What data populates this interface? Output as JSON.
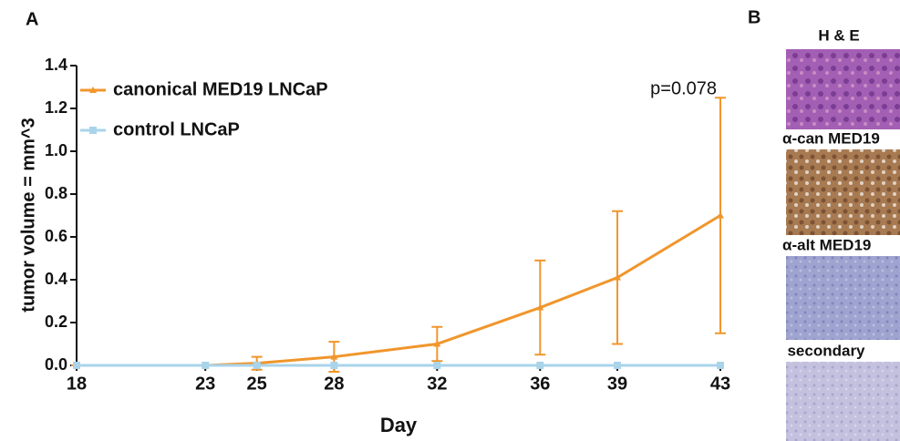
{
  "chart_data": {
    "type": "line",
    "xlabel": "Day",
    "ylabel": "tumor volume = mm^3",
    "x": [
      18,
      23,
      25,
      28,
      32,
      36,
      39,
      43
    ],
    "xlim": [
      18,
      43
    ],
    "xticks": [
      18,
      23,
      25,
      28,
      32,
      36,
      39,
      43
    ],
    "ylim": [
      0,
      1.4
    ],
    "yticks": [
      {
        "value": 0,
        "label": "0.0"
      },
      0.2,
      0.4,
      0.6,
      0.8,
      {
        "value": 1,
        "label": "1.0"
      },
      1.2,
      1.4
    ],
    "legend": "upper left",
    "annotation": "p=0.078",
    "series": [
      {
        "name": "canonical MED19 LNCaP",
        "color": "#f0962c",
        "values": [
          0,
          0,
          0.01,
          0.04,
          0.1,
          0.27,
          0.41,
          0.7
        ],
        "errors": [
          0,
          0,
          0.03,
          0.07,
          0.08,
          0.22,
          0.31,
          0.55
        ]
      },
      {
        "name": "control LNCaP",
        "color": "#a9d4ea",
        "values": [
          0,
          0,
          0,
          0,
          0,
          0,
          0,
          0
        ]
      }
    ]
  },
  "panel_labels": [
    "A",
    "B"
  ],
  "images": [
    {
      "label": "H & E"
    },
    {
      "label": "α-can MED19"
    },
    {
      "label": "α-alt MED19"
    },
    {
      "label": "secondary"
    }
  ]
}
